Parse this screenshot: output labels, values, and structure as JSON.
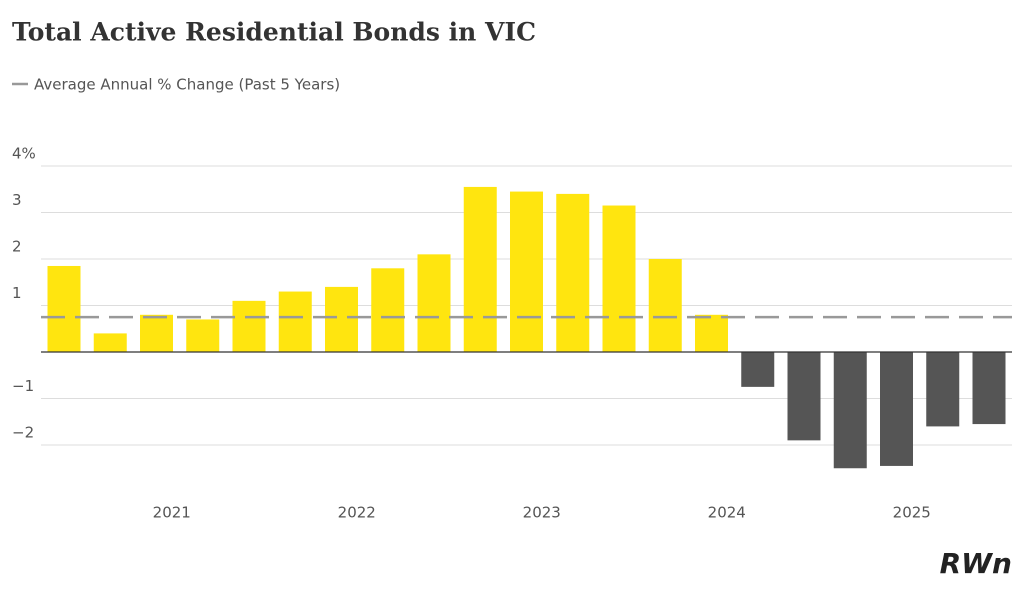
{
  "chart_data": {
    "type": "bar",
    "title": "Total Active Residential Bonds in VIC",
    "reference_line": {
      "name": "Average Annual % Change (Past 5 Years)",
      "value": 0.75,
      "color": "#999999"
    },
    "x_labels": [
      "2021",
      "2022",
      "2023",
      "2024",
      "2025"
    ],
    "values": [
      1.85,
      0.4,
      0.8,
      0.7,
      1.1,
      1.3,
      1.4,
      1.8,
      2.1,
      3.55,
      3.45,
      3.4,
      3.15,
      2.0,
      0.8,
      -0.75,
      -1.9,
      -2.5,
      -2.45,
      -1.6,
      -1.55
    ],
    "color_positive": "#FFE50F",
    "color_negative": "#555555",
    "ylim": [
      -3,
      4
    ],
    "yticks": [
      {
        "value": 4,
        "label": "4%"
      },
      3,
      2,
      1,
      {
        "value": -1,
        "label": "−1"
      },
      {
        "value": -2,
        "label": "−2"
      }
    ],
    "grid": true,
    "brand": "RWn"
  }
}
